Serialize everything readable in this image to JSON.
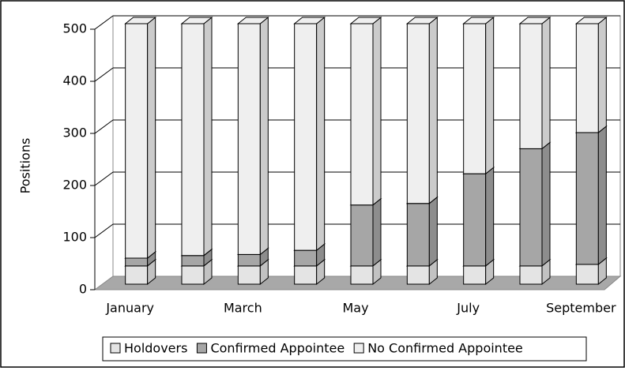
{
  "chart_data": {
    "type": "stacked-bar-3d",
    "y_label": "Positions",
    "categories": [
      "January",
      null,
      "March",
      null,
      "May",
      null,
      "July",
      null,
      "September"
    ],
    "series": [
      {
        "name": "Holdovers",
        "color": "#e4e4e4",
        "values": [
          35,
          35,
          35,
          35,
          35,
          35,
          35,
          35,
          38
        ]
      },
      {
        "name": "Confirmed Appointee",
        "color": "#a6a6a6",
        "values": [
          15,
          20,
          22,
          30,
          117,
          120,
          177,
          225,
          253
        ]
      },
      {
        "name": "No Confirmed Appointee",
        "color": "#efefef",
        "values": [
          450,
          445,
          443,
          435,
          348,
          345,
          288,
          240,
          209
        ]
      }
    ],
    "ylim": [
      0,
      500
    ],
    "yticks": [
      0,
      100,
      200,
      300,
      400,
      500
    ],
    "grid": true,
    "legend": "bottom"
  }
}
